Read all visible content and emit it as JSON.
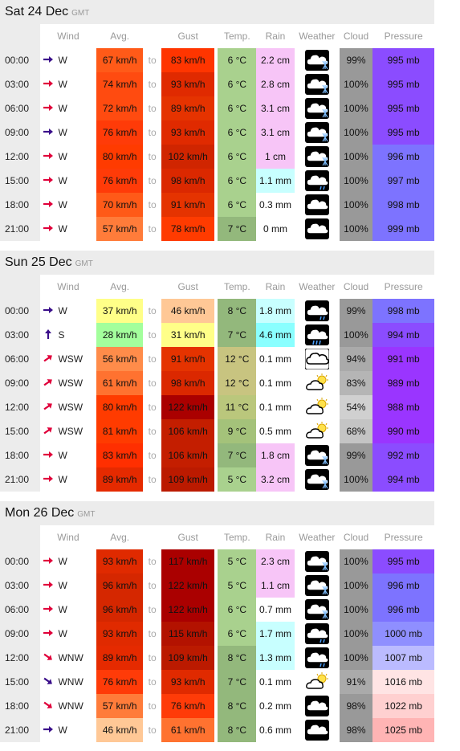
{
  "units": {
    "tz": "GMT"
  },
  "headers": {
    "wind": "Wind",
    "avg": "Avg.",
    "gust": "Gust",
    "temp": "Temp.",
    "rain": "Rain",
    "weather": "Weather",
    "cloud": "Cloud",
    "pressure": "Pressure",
    "to": "to"
  },
  "days": [
    {
      "title": "Sat 24 Dec",
      "tz": "GMT",
      "rows": [
        {
          "time": "00:00",
          "dir": "W",
          "dirType": "e",
          "arrowColor": "#3a0e8a",
          "avg": "67 km/h",
          "avgBg": "#ff5a18",
          "gust": "83 km/h",
          "gustBg": "#ff3500",
          "temp": "6 °C",
          "tempBg": "#a9d18e",
          "rain": "2.2 cm",
          "rainBg": "#f7c5f7",
          "icon": "snow-cloud-icon",
          "iconType": "snow",
          "cloud": "99%",
          "cloudBg": "#999999",
          "press": "995 mb",
          "pressBg": "#8b4cff"
        },
        {
          "time": "03:00",
          "dir": "W",
          "dirType": "e",
          "arrowColor": "#e0003a",
          "avg": "74 km/h",
          "avgBg": "#ff4b10",
          "gust": "93 km/h",
          "gustBg": "#e02a00",
          "temp": "6 °C",
          "tempBg": "#a9d18e",
          "rain": "2.8 cm",
          "rainBg": "#f7c5f7",
          "icon": "snow-cloud-icon",
          "iconType": "snow",
          "cloud": "100%",
          "cloudBg": "#999999",
          "press": "995 mb",
          "pressBg": "#8b4cff"
        },
        {
          "time": "06:00",
          "dir": "W",
          "dirType": "e",
          "arrowColor": "#e0003a",
          "avg": "72 km/h",
          "avgBg": "#ff4b10",
          "gust": "89 km/h",
          "gustBg": "#e53300",
          "temp": "6 °C",
          "tempBg": "#a9d18e",
          "rain": "3.1 cm",
          "rainBg": "#f7c5f7",
          "icon": "snow-cloud-icon",
          "iconType": "snow",
          "cloud": "100%",
          "cloudBg": "#999999",
          "press": "995 mb",
          "pressBg": "#8b4cff"
        },
        {
          "time": "09:00",
          "dir": "W",
          "dirType": "e",
          "arrowColor": "#3a0e8a",
          "avg": "76 km/h",
          "avgBg": "#ff3b08",
          "gust": "93 km/h",
          "gustBg": "#e02a00",
          "temp": "6 °C",
          "tempBg": "#a9d18e",
          "rain": "3.1 cm",
          "rainBg": "#f7c5f7",
          "icon": "snow-cloud-icon",
          "iconType": "snow-light",
          "cloud": "100%",
          "cloudBg": "#999999",
          "press": "995 mb",
          "pressBg": "#8b4cff"
        },
        {
          "time": "12:00",
          "dir": "W",
          "dirType": "e",
          "arrowColor": "#e0003a",
          "avg": "80 km/h",
          "avgBg": "#ff3b00",
          "gust": "102 km/h",
          "gustBg": "#d02500",
          "temp": "6 °C",
          "tempBg": "#a9d18e",
          "rain": "1 cm",
          "rainBg": "#f7c5f7",
          "icon": "snow-cloud-icon",
          "iconType": "snow-light",
          "cloud": "100%",
          "cloudBg": "#999999",
          "press": "996 mb",
          "pressBg": "#7d73ff"
        },
        {
          "time": "15:00",
          "dir": "W",
          "dirType": "e",
          "arrowColor": "#e0003a",
          "avg": "76 km/h",
          "avgBg": "#ff3b08",
          "gust": "98 km/h",
          "gustBg": "#db2800",
          "temp": "6 °C",
          "tempBg": "#a9d18e",
          "rain": "1.1 mm",
          "rainBg": "#c8ffff",
          "icon": "drizzle-cloud-icon",
          "iconType": "drizzle",
          "cloud": "100%",
          "cloudBg": "#999999",
          "press": "997 mb",
          "pressBg": "#7d73ff"
        },
        {
          "time": "18:00",
          "dir": "W",
          "dirType": "e",
          "arrowColor": "#e0003a",
          "avg": "70 km/h",
          "avgBg": "#ff5a18",
          "gust": "91 km/h",
          "gustBg": "#e53300",
          "temp": "6 °C",
          "tempBg": "#a9d18e",
          "rain": "0.3 mm",
          "rainBg": "#ffffff",
          "icon": "cloud-icon",
          "iconType": "cloud",
          "cloud": "100%",
          "cloudBg": "#999999",
          "press": "998 mb",
          "pressBg": "#7d73ff"
        },
        {
          "time": "21:00",
          "dir": "W",
          "dirType": "e",
          "arrowColor": "#e0003a",
          "avg": "57 km/h",
          "avgBg": "#ff7c3a",
          "gust": "78 km/h",
          "gustBg": "#ff3b00",
          "temp": "7 °C",
          "tempBg": "#93b87c",
          "rain": "0 mm",
          "rainBg": "#ffffff",
          "icon": "cloud-icon",
          "iconType": "cloud",
          "cloud": "100%",
          "cloudBg": "#999999",
          "press": "999 mb",
          "pressBg": "#7d73ff"
        }
      ]
    },
    {
      "title": "Sun 25 Dec",
      "tz": "GMT",
      "rows": [
        {
          "time": "00:00",
          "dir": "W",
          "dirType": "e",
          "arrowColor": "#3a0e8a",
          "avg": "37 km/h",
          "avgBg": "#ffff88",
          "gust": "46 km/h",
          "gustBg": "#ffc896",
          "temp": "8 °C",
          "tempBg": "#93b87c",
          "rain": "1.8 mm",
          "rainBg": "#c8ffff",
          "icon": "drizzle-cloud-icon",
          "iconType": "drizzle",
          "cloud": "99%",
          "cloudBg": "#999999",
          "press": "998 mb",
          "pressBg": "#7d73ff"
        },
        {
          "time": "03:00",
          "dir": "S",
          "dirType": "n",
          "arrowColor": "#3a0e8a",
          "avg": "28 km/h",
          "avgBg": "#a3ff9c",
          "gust": "31 km/h",
          "gustBg": "#ffff88",
          "temp": "7 °C",
          "tempBg": "#93b87c",
          "rain": "4.6 mm",
          "rainBg": "#8affff",
          "icon": "rain-cloud-icon",
          "iconType": "rain",
          "cloud": "100%",
          "cloudBg": "#999999",
          "press": "994 mb",
          "pressBg": "#8b4cff"
        },
        {
          "time": "06:00",
          "dir": "WSW",
          "dirType": "ne",
          "arrowColor": "#e0003a",
          "avg": "56 km/h",
          "avgBg": "#ff8c4a",
          "gust": "91 km/h",
          "gustBg": "#e53300",
          "temp": "12 °C",
          "tempBg": "#c8c480",
          "rain": "0.1 mm",
          "rainBg": "#ffffff",
          "icon": "cloud-icon",
          "iconType": "cloud-light",
          "cloud": "94%",
          "cloudBg": "#aaaaaa",
          "press": "991 mb",
          "pressBg": "#9a35ff"
        },
        {
          "time": "09:00",
          "dir": "WSW",
          "dirType": "ne",
          "arrowColor": "#e0003a",
          "avg": "61 km/h",
          "avgBg": "#ff7230",
          "gust": "98 km/h",
          "gustBg": "#db2800",
          "temp": "12 °C",
          "tempBg": "#c8c480",
          "rain": "0.1 mm",
          "rainBg": "#ffffff",
          "icon": "sun-cloud-icon",
          "iconType": "suncloud",
          "cloud": "83%",
          "cloudBg": "#b5b5b5",
          "press": "989 mb",
          "pressBg": "#9a35ff"
        },
        {
          "time": "12:00",
          "dir": "WSW",
          "dirType": "ne",
          "arrowColor": "#e0003a",
          "avg": "80 km/h",
          "avgBg": "#ff3b00",
          "gust": "122 km/h",
          "gustBg": "#aa0000",
          "temp": "11 °C",
          "tempBg": "#bac77c",
          "rain": "0.1 mm",
          "rainBg": "#ffffff",
          "icon": "sun-cloud-icon",
          "iconType": "suncloud",
          "cloud": "54%",
          "cloudBg": "#d0d0d0",
          "press": "988 mb",
          "pressBg": "#9a35ff"
        },
        {
          "time": "15:00",
          "dir": "WSW",
          "dirType": "ne",
          "arrowColor": "#e0003a",
          "avg": "81 km/h",
          "avgBg": "#ff3b00",
          "gust": "106 km/h",
          "gustBg": "#c41e00",
          "temp": "9 °C",
          "tempBg": "#a4c27a",
          "rain": "0.5 mm",
          "rainBg": "#ffffff",
          "icon": "sun-cloud-icon",
          "iconType": "suncloud",
          "cloud": "68%",
          "cloudBg": "#c4c4c4",
          "press": "990 mb",
          "pressBg": "#9a35ff"
        },
        {
          "time": "18:00",
          "dir": "W",
          "dirType": "e",
          "arrowColor": "#e0003a",
          "avg": "83 km/h",
          "avgBg": "#ff2f00",
          "gust": "106 km/h",
          "gustBg": "#c41e00",
          "temp": "7 °C",
          "tempBg": "#93b87c",
          "rain": "1.8 cm",
          "rainBg": "#f7c5f7",
          "icon": "snow-cloud-icon",
          "iconType": "snow",
          "cloud": "99%",
          "cloudBg": "#999999",
          "press": "992 mb",
          "pressBg": "#8b4cff"
        },
        {
          "time": "21:00",
          "dir": "W",
          "dirType": "e",
          "arrowColor": "#e0003a",
          "avg": "89 km/h",
          "avgBg": "#e52a00",
          "gust": "109 km/h",
          "gustBg": "#bb1a00",
          "temp": "5 °C",
          "tempBg": "#a9d18e",
          "rain": "3.2 cm",
          "rainBg": "#f7c5f7",
          "icon": "snow-cloud-icon",
          "iconType": "snow",
          "cloud": "100%",
          "cloudBg": "#999999",
          "press": "994 mb",
          "pressBg": "#8b4cff"
        }
      ]
    },
    {
      "title": "Mon 26 Dec",
      "tz": "GMT",
      "rows": [
        {
          "time": "00:00",
          "dir": "W",
          "dirType": "e",
          "arrowColor": "#e0003a",
          "avg": "93 km/h",
          "avgBg": "#e02a00",
          "gust": "117 km/h",
          "gustBg": "#aa0000",
          "temp": "5 °C",
          "tempBg": "#a9d18e",
          "rain": "2.3 cm",
          "rainBg": "#f7c5f7",
          "icon": "snow-cloud-icon",
          "iconType": "snow",
          "cloud": "100%",
          "cloudBg": "#999999",
          "press": "995 mb",
          "pressBg": "#8b4cff"
        },
        {
          "time": "03:00",
          "dir": "W",
          "dirType": "e",
          "arrowColor": "#e0003a",
          "avg": "96 km/h",
          "avgBg": "#d52700",
          "gust": "122 km/h",
          "gustBg": "#aa0000",
          "temp": "5 °C",
          "tempBg": "#a9d18e",
          "rain": "1.1 cm",
          "rainBg": "#f7c5f7",
          "icon": "snow-cloud-icon",
          "iconType": "snow",
          "cloud": "100%",
          "cloudBg": "#999999",
          "press": "996 mb",
          "pressBg": "#7d73ff"
        },
        {
          "time": "06:00",
          "dir": "W",
          "dirType": "e",
          "arrowColor": "#e0003a",
          "avg": "96 km/h",
          "avgBg": "#d52700",
          "gust": "122 km/h",
          "gustBg": "#aa0000",
          "temp": "6 °C",
          "tempBg": "#a9d18e",
          "rain": "0.7 mm",
          "rainBg": "#ffffff",
          "icon": "snow-cloud-icon",
          "iconType": "snow-light",
          "cloud": "100%",
          "cloudBg": "#999999",
          "press": "996 mb",
          "pressBg": "#7d73ff"
        },
        {
          "time": "09:00",
          "dir": "W",
          "dirType": "e",
          "arrowColor": "#e0003a",
          "avg": "93 km/h",
          "avgBg": "#e02a00",
          "gust": "115 km/h",
          "gustBg": "#b31200",
          "temp": "6 °C",
          "tempBg": "#a9d18e",
          "rain": "1.7 mm",
          "rainBg": "#c8ffff",
          "icon": "drizzle-cloud-icon",
          "iconType": "drizzle",
          "cloud": "100%",
          "cloudBg": "#999999",
          "press": "1000 mb",
          "pressBg": "#8f8fff"
        },
        {
          "time": "12:00",
          "dir": "WNW",
          "dirType": "se",
          "arrowColor": "#e0003a",
          "avg": "89 km/h",
          "avgBg": "#e52a00",
          "gust": "109 km/h",
          "gustBg": "#bb1a00",
          "temp": "8 °C",
          "tempBg": "#93b87c",
          "rain": "1.3 mm",
          "rainBg": "#c8ffff",
          "icon": "drizzle-cloud-icon",
          "iconType": "drizzle",
          "cloud": "100%",
          "cloudBg": "#999999",
          "press": "1007 mb",
          "pressBg": "#bbbbff"
        },
        {
          "time": "15:00",
          "dir": "WNW",
          "dirType": "se",
          "arrowColor": "#3a0e8a",
          "avg": "76 km/h",
          "avgBg": "#ff3b08",
          "gust": "93 km/h",
          "gustBg": "#e02a00",
          "temp": "7 °C",
          "tempBg": "#93b87c",
          "rain": "0.1 mm",
          "rainBg": "#ffffff",
          "icon": "sun-cloud-icon",
          "iconType": "suncloud",
          "cloud": "91%",
          "cloudBg": "#aaaaaa",
          "press": "1016 mb",
          "pressBg": "#ffe4e4"
        },
        {
          "time": "18:00",
          "dir": "WNW",
          "dirType": "se",
          "arrowColor": "#e0003a",
          "avg": "57 km/h",
          "avgBg": "#ff7c3a",
          "gust": "76 km/h",
          "gustBg": "#ff3b08",
          "temp": "8 °C",
          "tempBg": "#93b87c",
          "rain": "0.2 mm",
          "rainBg": "#ffffff",
          "icon": "cloud-icon",
          "iconType": "cloud",
          "cloud": "98%",
          "cloudBg": "#999999",
          "press": "1022 mb",
          "pressBg": "#ffd0d0"
        },
        {
          "time": "21:00",
          "dir": "W",
          "dirType": "e",
          "arrowColor": "#3a0e8a",
          "avg": "46 km/h",
          "avgBg": "#ffc896",
          "gust": "61 km/h",
          "gustBg": "#ff7230",
          "temp": "8 °C",
          "tempBg": "#93b87c",
          "rain": "0.6 mm",
          "rainBg": "#ffffff",
          "icon": "cloud-icon",
          "iconType": "cloud",
          "cloud": "98%",
          "cloudBg": "#999999",
          "press": "1025 mb",
          "pressBg": "#ffb4b4"
        }
      ]
    }
  ]
}
